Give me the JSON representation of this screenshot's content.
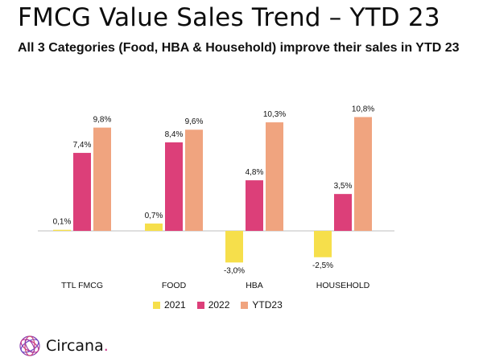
{
  "title": "FMCG Value Sales Trend – YTD 23",
  "subtitle": "All 3 Categories (Food, HBA & Household) improve their sales in YTD 23",
  "logo": {
    "name": "Circana",
    "dot": ".",
    "icon": "circana-logo-icon"
  },
  "colors": {
    "s2021": "#f6df4b",
    "s2022": "#dc3f79",
    "sYTD23": "#f0a47f",
    "axis": "#bfbfbf"
  },
  "chart_data": {
    "type": "bar",
    "categories": [
      "TTL FMCG",
      "FOOD",
      "HBA",
      "HOUSEHOLD"
    ],
    "series": [
      {
        "name": "2021",
        "values": [
          0.1,
          0.7,
          -3.0,
          -2.5
        ],
        "labels": [
          "0,1%",
          "0,7%",
          "-3,0%",
          "-2,5%"
        ]
      },
      {
        "name": "2022",
        "values": [
          7.4,
          8.4,
          4.8,
          3.5
        ],
        "labels": [
          "7,4%",
          "8,4%",
          "4,8%",
          "3,5%"
        ]
      },
      {
        "name": "YTD23",
        "values": [
          9.8,
          9.6,
          10.3,
          10.8
        ],
        "labels": [
          "9,8%",
          "9,6%",
          "10,3%",
          "10,8%"
        ]
      }
    ],
    "legend_position": "bottom",
    "grid": false
  }
}
